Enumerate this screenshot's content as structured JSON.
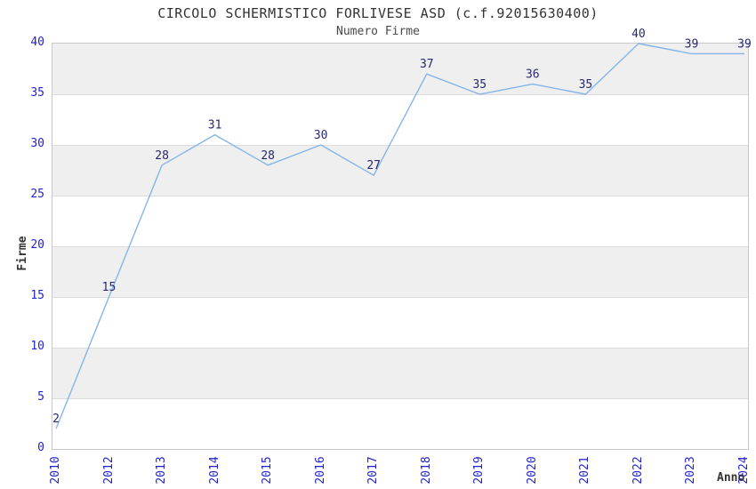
{
  "chart_data": {
    "type": "line",
    "title": "CIRCOLO SCHERMISTICO FORLIVESE ASD (c.f.92015630400)",
    "subtitle": "Numero Firme",
    "xlabel": "Anno",
    "ylabel": "Firme",
    "categories": [
      "2010",
      "2012",
      "2013",
      "2014",
      "2015",
      "2016",
      "2017",
      "2018",
      "2019",
      "2020",
      "2021",
      "2022",
      "2023",
      "2024"
    ],
    "values": [
      2,
      15,
      28,
      31,
      28,
      30,
      27,
      37,
      35,
      36,
      35,
      40,
      39,
      39
    ],
    "ylim": [
      0,
      40
    ],
    "yticks": [
      0,
      5,
      10,
      15,
      20,
      25,
      30,
      35,
      40
    ],
    "grid": true,
    "legend_position": "none",
    "colors": {
      "line": "#85b5e7",
      "point_label": "#28286e",
      "tick_label": "#2323ce",
      "band_grey": "#efefef",
      "band_white": "#ffffff",
      "gridline": "#dcdcdc",
      "plot_border": "#c8c8c8",
      "title_text": "#333333"
    }
  }
}
